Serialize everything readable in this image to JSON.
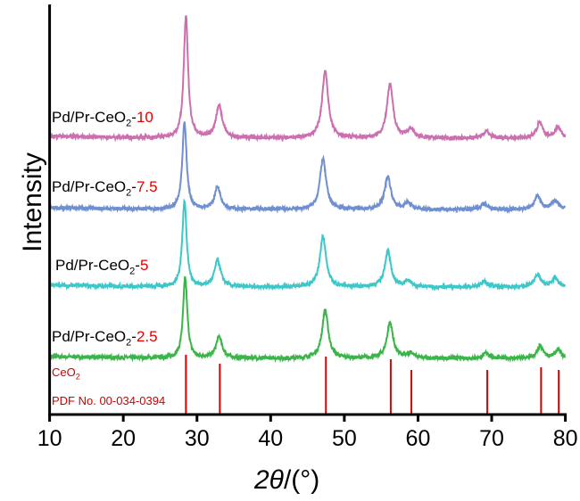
{
  "chart_data": {
    "type": "line",
    "xlabel_prefix": "2θ",
    "xlabel_suffix": "/(°)",
    "ylabel": "Intensity",
    "xlim": [
      10,
      80
    ],
    "ylim": [
      -63,
      397
    ],
    "xticks": [
      "10",
      "20",
      "30",
      "40",
      "50",
      "60",
      "70",
      "80"
    ],
    "series": [
      {
        "name_prefix": "Pd/Pr-CeO",
        "name_sub": "2",
        "name_dash": "-",
        "name_value": "2.5",
        "color": "#3bb54a",
        "offset": 0,
        "peaks": [
          [
            28.4,
            90
          ],
          [
            33.0,
            24
          ],
          [
            47.4,
            54
          ],
          [
            56.2,
            40
          ],
          [
            59.0,
            6
          ],
          [
            69.3,
            6
          ],
          [
            76.6,
            13
          ],
          [
            79.0,
            9
          ]
        ]
      },
      {
        "name_prefix": "Pd/Pr-CeO",
        "name_sub": "2",
        "name_dash": "-",
        "name_value": "5",
        "color": "#3dc7c8",
        "offset": 80,
        "peaks": [
          [
            28.3,
            97
          ],
          [
            32.8,
            30
          ],
          [
            47.1,
            57
          ],
          [
            55.9,
            40
          ],
          [
            58.6,
            7
          ],
          [
            69.0,
            7
          ],
          [
            76.2,
            14
          ],
          [
            78.6,
            10
          ]
        ]
      },
      {
        "name_prefix": "Pd/Pr-CeO",
        "name_sub": "2",
        "name_dash": "-",
        "name_value": "7.5",
        "color": "#6f8fd0",
        "offset": 167,
        "peaks": [
          [
            28.3,
            97
          ],
          [
            32.8,
            25
          ],
          [
            47.1,
            57
          ],
          [
            55.9,
            37
          ],
          [
            58.6,
            7
          ],
          [
            69.0,
            7
          ],
          [
            76.2,
            15
          ],
          [
            78.6,
            10
          ]
        ]
      },
      {
        "name_prefix": "Pd/Pr-CeO",
        "name_sub": "2",
        "name_dash": "-",
        "name_value": "10",
        "color": "#cc6fae",
        "offset": 247,
        "peaks": [
          [
            28.5,
            137
          ],
          [
            33.0,
            37
          ],
          [
            47.4,
            75
          ],
          [
            56.2,
            60
          ],
          [
            59.0,
            10
          ],
          [
            69.3,
            8
          ],
          [
            76.5,
            17
          ],
          [
            79.0,
            12
          ]
        ]
      }
    ],
    "reference": {
      "name": "CeO",
      "name_sub": "2",
      "card": "PDF No. 00-034-0394",
      "color": "#e00000",
      "lines": [
        [
          28.5,
          67
        ],
        [
          33.1,
          57
        ],
        [
          47.5,
          65
        ],
        [
          56.3,
          62
        ],
        [
          59.1,
          50
        ],
        [
          69.4,
          50
        ],
        [
          76.7,
          53
        ],
        [
          79.1,
          50
        ]
      ]
    }
  }
}
